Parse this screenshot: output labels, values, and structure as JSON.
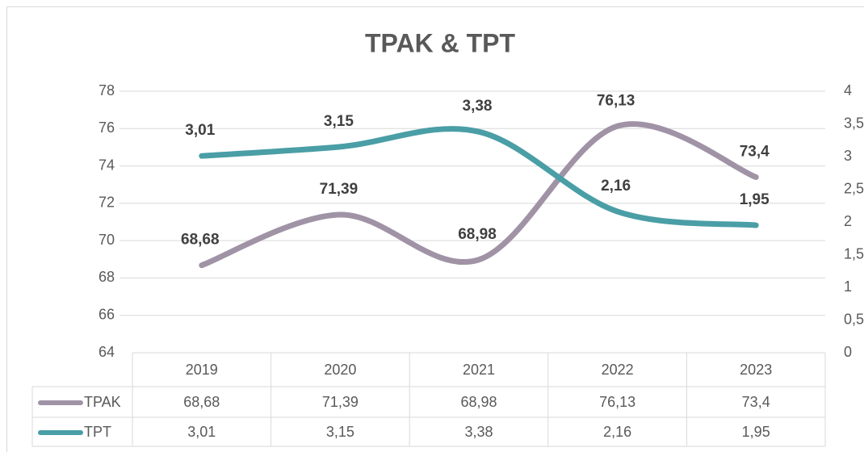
{
  "chart_data": {
    "type": "line",
    "title": "TPAK & TPT",
    "categories": [
      "2019",
      "2020",
      "2021",
      "2022",
      "2023"
    ],
    "series": [
      {
        "name": "TPAK",
        "color": "#a093a6",
        "values": [
          68.68,
          71.39,
          68.98,
          76.13,
          73.4
        ],
        "value_labels": [
          "68,68",
          "71,39",
          "68,98",
          "76,13",
          "73,4"
        ]
      },
      {
        "name": "TPT",
        "color": "#4a9ea6",
        "axis": "y2",
        "values": [
          3.01,
          3.15,
          3.38,
          2.16,
          1.95
        ],
        "value_labels": [
          "3,01",
          "3,15",
          "3,38",
          "2,16",
          "1,95"
        ]
      }
    ],
    "ylim": [
      64,
      78
    ],
    "yticks": [
      64,
      66,
      68,
      70,
      72,
      74,
      76,
      78
    ],
    "y2lim": [
      0,
      4
    ],
    "y2ticks": [
      0,
      {
        "value": 0.5,
        "label": "0,5"
      },
      1,
      {
        "value": 1.5,
        "label": "1,5"
      },
      2,
      {
        "value": 2.5,
        "label": "2,5"
      },
      3,
      {
        "value": 3.5,
        "label": "3,5"
      },
      4
    ],
    "grid": true,
    "smooth": true
  }
}
